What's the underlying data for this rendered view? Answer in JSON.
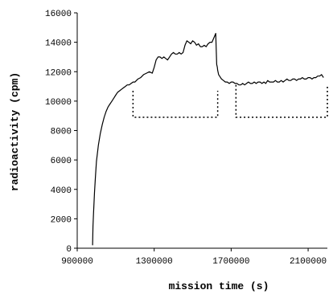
{
  "chart_data": {
    "type": "line",
    "title": "",
    "xlabel": "mission time (s)",
    "ylabel": "radioactivity (cpm)",
    "xlim": [
      900000,
      2200000
    ],
    "ylim": [
      0,
      16000
    ],
    "x_ticks": [
      900000,
      1300000,
      1700000,
      2100000
    ],
    "x_tick_labels": [
      "900000",
      "1300000",
      "1700000",
      "2100000"
    ],
    "y_ticks": [
      0,
      2000,
      4000,
      6000,
      8000,
      10000,
      12000,
      14000,
      16000
    ],
    "y_tick_labels": [
      "0",
      "2000",
      "4000",
      "6000",
      "8000",
      "10000",
      "12000",
      "14000",
      "16000"
    ],
    "grid": false,
    "legend": "none",
    "series": [
      {
        "color": "#000000",
        "x": [
          980000,
          982000,
          985000,
          990000,
          995000,
          1000000,
          1010000,
          1020000,
          1030000,
          1040000,
          1050000,
          1060000,
          1070000,
          1080000,
          1090000,
          1100000,
          1110000,
          1120000,
          1130000,
          1140000,
          1150000,
          1160000,
          1170000,
          1180000,
          1190000,
          1200000,
          1215000,
          1230000,
          1245000,
          1260000,
          1275000,
          1290000,
          1300000,
          1310000,
          1320000,
          1330000,
          1340000,
          1350000,
          1360000,
          1370000,
          1380000,
          1390000,
          1400000,
          1410000,
          1420000,
          1430000,
          1440000,
          1450000,
          1460000,
          1470000,
          1480000,
          1490000,
          1500000,
          1510000,
          1520000,
          1530000,
          1540000,
          1550000,
          1560000,
          1570000,
          1580000,
          1590000,
          1600000,
          1610000,
          1620000,
          1625000,
          1628000,
          1630000,
          1635000,
          1640000,
          1650000,
          1660000,
          1670000,
          1680000,
          1690000,
          1700000,
          1710000,
          1720000,
          1730000,
          1740000,
          1750000,
          1760000,
          1770000,
          1780000,
          1790000,
          1800000,
          1810000,
          1820000,
          1830000,
          1840000,
          1850000,
          1860000,
          1870000,
          1880000,
          1890000,
          1900000,
          1910000,
          1920000,
          1930000,
          1940000,
          1950000,
          1960000,
          1970000,
          1980000,
          1990000,
          2000000,
          2010000,
          2020000,
          2030000,
          2040000,
          2050000,
          2060000,
          2070000,
          2080000,
          2090000,
          2100000,
          2110000,
          2120000,
          2130000,
          2140000,
          2150000,
          2160000,
          2170000,
          2180000
        ],
        "y": [
          200,
          1500,
          2400,
          3800,
          4900,
          5900,
          7000,
          7800,
          8400,
          8900,
          9300,
          9600,
          9800,
          10000,
          10200,
          10400,
          10600,
          10700,
          10800,
          10900,
          11000,
          11100,
          11100,
          11200,
          11300,
          11300,
          11500,
          11600,
          11800,
          11900,
          12000,
          11900,
          12300,
          12800,
          13000,
          13000,
          12900,
          13000,
          12900,
          12800,
          13000,
          13200,
          13300,
          13200,
          13200,
          13300,
          13200,
          13300,
          13800,
          14100,
          14000,
          13900,
          14100,
          14000,
          13800,
          13900,
          13700,
          13700,
          13800,
          13700,
          13900,
          14000,
          14000,
          14300,
          14600,
          12500,
          12300,
          12100,
          11800,
          11700,
          11500,
          11400,
          11300,
          11300,
          11200,
          11300,
          11300,
          11200,
          11200,
          11100,
          11100,
          11200,
          11100,
          11200,
          11300,
          11200,
          11200,
          11300,
          11200,
          11300,
          11300,
          11200,
          11300,
          11200,
          11400,
          11300,
          11300,
          11300,
          11400,
          11300,
          11300,
          11400,
          11300,
          11400,
          11500,
          11400,
          11400,
          11500,
          11500,
          11400,
          11500,
          11500,
          11600,
          11500,
          11500,
          11600,
          11600,
          11500,
          11600,
          11600,
          11700,
          11700,
          11800,
          11600
        ]
      }
    ],
    "annotations": [
      {
        "style": "dotted-bracket",
        "x_start": 1190000,
        "x_end": 1630000,
        "y_top": 10700,
        "y_bottom": 8900
      },
      {
        "style": "dotted-bracket",
        "x_start": 1725000,
        "x_end": 2200000,
        "y_top": 11100,
        "y_bottom": 8900
      }
    ]
  }
}
